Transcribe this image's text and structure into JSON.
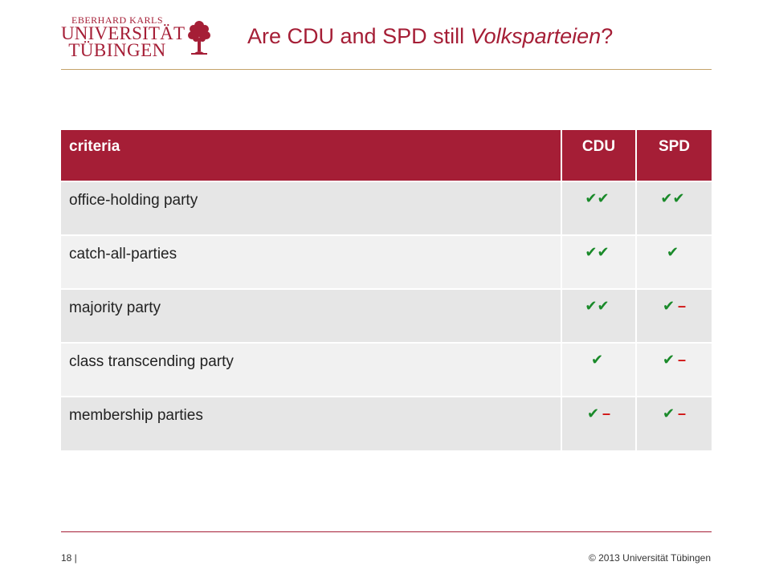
{
  "logo": {
    "line1": "EBERHARD KARLS",
    "line2": "UNIVERSITÄT",
    "line3": "TÜBINGEN",
    "icon": "university-tree-icon",
    "color": "#a51e36"
  },
  "title": {
    "prefix": "Are CDU and SPD still ",
    "italic": "Volksparteien",
    "suffix": "?"
  },
  "table": {
    "headers": [
      "criteria",
      "CDU",
      "SPD"
    ],
    "rows": [
      {
        "criteria": "office-holding party",
        "cdu": "✔✔",
        "cdu_dash": "",
        "spd": "✔✔",
        "spd_dash": ""
      },
      {
        "criteria": "catch-all-parties",
        "cdu": "✔✔",
        "cdu_dash": "",
        "spd": "✔",
        "spd_dash": ""
      },
      {
        "criteria": "majority party",
        "cdu": "✔✔",
        "cdu_dash": "",
        "spd": "✔",
        "spd_dash": "–"
      },
      {
        "criteria": "class transcending party",
        "cdu": "✔",
        "cdu_dash": "",
        "spd": "✔",
        "spd_dash": "–"
      },
      {
        "criteria": "membership parties",
        "cdu": "✔",
        "cdu_dash": "–",
        "spd": "✔",
        "spd_dash": "–"
      }
    ],
    "header_color": "#a51e36",
    "check_color": "#1a8a2a",
    "dash_color": "#d01010"
  },
  "footer": {
    "page": "18 |",
    "copyright": "© 2013 Universität Tübingen"
  }
}
